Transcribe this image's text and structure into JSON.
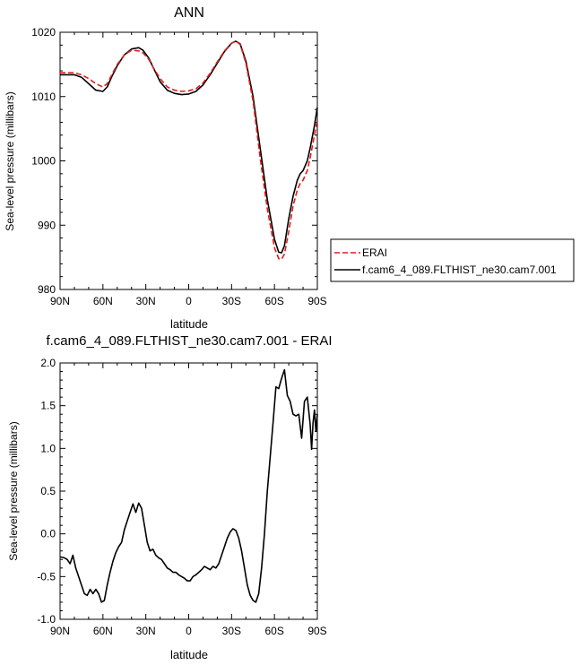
{
  "chart_data": [
    {
      "type": "line",
      "title": "ANN",
      "xlabel": "latitude",
      "ylabel": "Sea-level pressure (millibars)",
      "xlim": [
        90,
        -90
      ],
      "ylim": [
        980,
        1020
      ],
      "x_ticks": [
        90,
        60,
        30,
        0,
        -30,
        -60,
        -90
      ],
      "x_tick_labels": [
        "90N",
        "60N",
        "30N",
        "0",
        "30S",
        "60S",
        "90S"
      ],
      "y_ticks": [
        980,
        990,
        1000,
        1010,
        1020
      ],
      "y_tick_labels": [
        "980",
        "990",
        "1000",
        "1010",
        "1020"
      ],
      "legend": {
        "placement": "right",
        "entries": [
          {
            "label": "ERAI",
            "color": "#e31a1c",
            "dash": "dashed"
          },
          {
            "label": "f.cam6_4_089.FLTHIST_ne30.cam7.001",
            "color": "#000000",
            "dash": "solid"
          }
        ]
      },
      "series": [
        {
          "name": "f.cam6_4_089.FLTHIST_ne30.cam7.001",
          "color": "#000000",
          "dash": "solid",
          "x": [
            90,
            80,
            75,
            70,
            65,
            60,
            57,
            54,
            50,
            45,
            40,
            35,
            32,
            28,
            25,
            20,
            15,
            10,
            5,
            0,
            -5,
            -10,
            -15,
            -20,
            -25,
            -30,
            -33,
            -36,
            -40,
            -45,
            -50,
            -55,
            -60,
            -63,
            -65,
            -67,
            -70,
            -73,
            -76,
            -78,
            -80,
            -83,
            -85,
            -88,
            -90
          ],
          "y": [
            1013.4,
            1013.4,
            1013.0,
            1012.0,
            1011.0,
            1010.8,
            1011.5,
            1013.0,
            1014.8,
            1016.5,
            1017.4,
            1017.6,
            1017.2,
            1016.0,
            1014.6,
            1012.3,
            1011.0,
            1010.5,
            1010.3,
            1010.4,
            1010.8,
            1011.8,
            1013.4,
            1015.2,
            1017.0,
            1018.3,
            1018.6,
            1018.2,
            1015.5,
            1010.0,
            1002.0,
            994.0,
            987.8,
            985.8,
            985.7,
            986.8,
            991.0,
            994.5,
            997.0,
            998.0,
            998.5,
            1000.0,
            1002.0,
            1005.5,
            1008.3
          ]
        },
        {
          "name": "ERAI",
          "color": "#e31a1c",
          "dash": "dashed",
          "x": [
            90,
            80,
            75,
            70,
            65,
            60,
            57,
            54,
            50,
            45,
            40,
            35,
            32,
            28,
            25,
            20,
            15,
            10,
            5,
            0,
            -5,
            -10,
            -15,
            -20,
            -25,
            -30,
            -33,
            -36,
            -40,
            -45,
            -50,
            -55,
            -60,
            -63,
            -65,
            -67,
            -70,
            -73,
            -76,
            -78,
            -80,
            -83,
            -85,
            -88,
            -90
          ],
          "y": [
            1013.7,
            1013.7,
            1013.4,
            1012.8,
            1012.0,
            1011.5,
            1012.0,
            1013.3,
            1015.0,
            1016.5,
            1017.2,
            1017.1,
            1016.8,
            1015.8,
            1014.6,
            1012.8,
            1011.5,
            1011.0,
            1010.8,
            1010.9,
            1011.2,
            1012.1,
            1013.6,
            1015.4,
            1017.1,
            1018.3,
            1018.6,
            1018.1,
            1015.2,
            1009.3,
            1000.5,
            992.5,
            986.5,
            984.8,
            984.7,
            985.5,
            989.0,
            993.0,
            995.5,
            996.5,
            997.0,
            998.5,
            1000.5,
            1004.0,
            1006.5
          ]
        }
      ]
    },
    {
      "type": "line",
      "title": "f.cam6_4_089.FLTHIST_ne30.cam7.001 - ERAI",
      "xlabel": "latitude",
      "ylabel": "Sea-level pressure (millibars)",
      "xlim": [
        90,
        -90
      ],
      "ylim": [
        -1.0,
        2.0
      ],
      "x_ticks": [
        90,
        60,
        30,
        0,
        -30,
        -60,
        -90
      ],
      "x_tick_labels": [
        "90N",
        "60N",
        "30N",
        "0",
        "30S",
        "60S",
        "90S"
      ],
      "y_ticks": [
        -1.0,
        -0.5,
        0.0,
        0.5,
        1.0,
        1.5,
        2.0
      ],
      "y_tick_labels": [
        "-1.0",
        "-0.5",
        "0.0",
        "0.5",
        "1.0",
        "1.5",
        "2.0"
      ],
      "series": [
        {
          "color": "#000000",
          "dash": "solid",
          "x": [
            90,
            87,
            85,
            83,
            81,
            79,
            77,
            75,
            73,
            71,
            69,
            67,
            65,
            63,
            61,
            59,
            57,
            55,
            53,
            51,
            49,
            47,
            45,
            43,
            41,
            39,
            37,
            35,
            33,
            31,
            29,
            27,
            25,
            23,
            21,
            19,
            17,
            15,
            13,
            11,
            9,
            7,
            5,
            3,
            1,
            -1,
            -3,
            -5,
            -7,
            -9,
            -11,
            -13,
            -15,
            -17,
            -19,
            -21,
            -23,
            -25,
            -27,
            -29,
            -31,
            -33,
            -35,
            -37,
            -39,
            -41,
            -43,
            -45,
            -47,
            -49,
            -51,
            -53,
            -55,
            -57,
            -59,
            -61,
            -63,
            -65,
            -67,
            -69,
            -71,
            -73,
            -75,
            -77,
            -79,
            -81,
            -83,
            -85,
            -86,
            -87,
            -88,
            -89,
            -90
          ],
          "y": [
            -0.27,
            -0.28,
            -0.3,
            -0.35,
            -0.25,
            -0.4,
            -0.5,
            -0.6,
            -0.7,
            -0.72,
            -0.65,
            -0.7,
            -0.65,
            -0.7,
            -0.8,
            -0.78,
            -0.6,
            -0.45,
            -0.32,
            -0.22,
            -0.15,
            -0.1,
            0.05,
            0.15,
            0.25,
            0.35,
            0.25,
            0.36,
            0.3,
            0.1,
            -0.1,
            -0.2,
            -0.18,
            -0.25,
            -0.28,
            -0.3,
            -0.35,
            -0.4,
            -0.42,
            -0.45,
            -0.45,
            -0.48,
            -0.5,
            -0.52,
            -0.55,
            -0.55,
            -0.5,
            -0.48,
            -0.45,
            -0.42,
            -0.38,
            -0.4,
            -0.42,
            -0.38,
            -0.4,
            -0.35,
            -0.25,
            -0.15,
            -0.05,
            0.02,
            0.06,
            0.04,
            -0.05,
            -0.2,
            -0.4,
            -0.6,
            -0.72,
            -0.78,
            -0.8,
            -0.7,
            -0.4,
            0.0,
            0.5,
            0.9,
            1.3,
            1.72,
            1.7,
            1.82,
            1.92,
            1.62,
            1.55,
            1.4,
            1.38,
            1.4,
            1.12,
            1.55,
            1.6,
            1.28,
            0.99,
            1.3,
            1.45,
            1.2,
            1.4
          ]
        }
      ]
    }
  ]
}
